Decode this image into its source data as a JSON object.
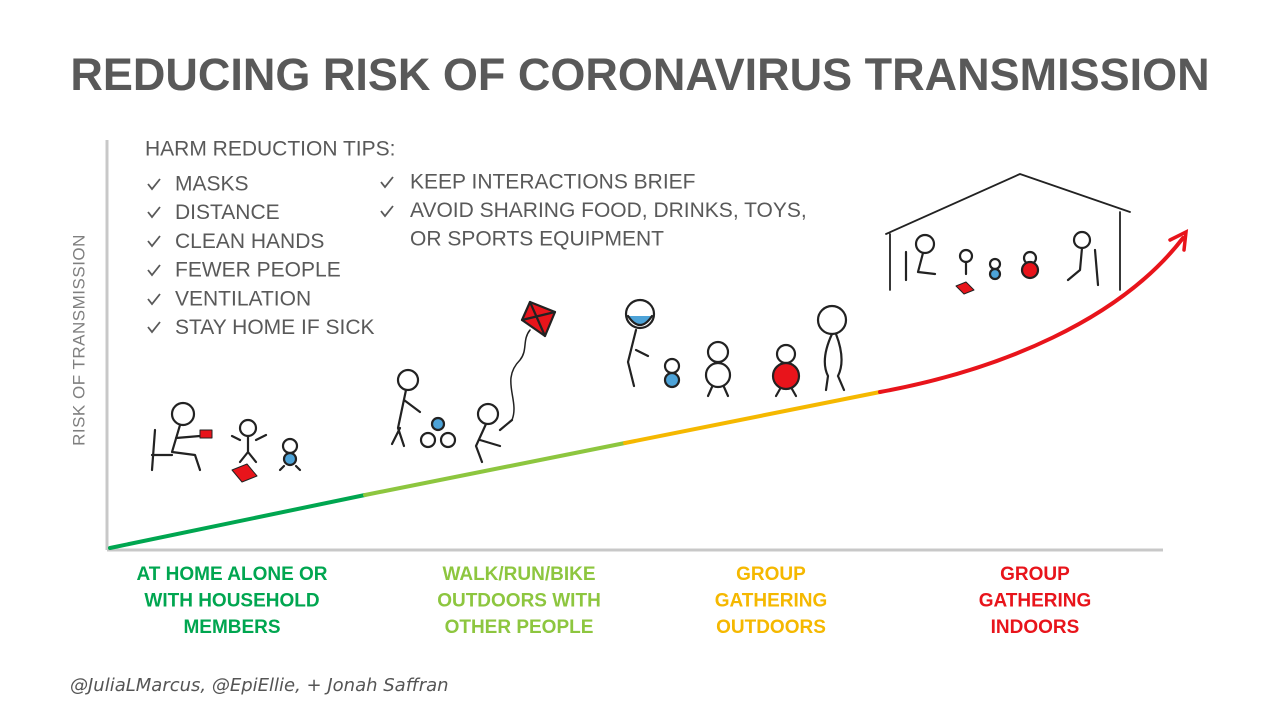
{
  "title": "REDUCING RISK OF CORONAVIRUS TRANSMISSION",
  "y_axis_label": "RISK OF TRANSMISSION",
  "tips": {
    "header": "HARM REDUCTION TIPS:",
    "left": [
      "MASKS",
      "DISTANCE",
      "CLEAN HANDS",
      "FEWER PEOPLE",
      "VENTILATION",
      "STAY HOME IF SICK"
    ],
    "right": [
      {
        "lines": [
          "KEEP INTERACTIONS BRIEF"
        ]
      },
      {
        "lines": [
          "AVOID SHARING FOOD, DRINKS, TOYS,",
          "OR SPORTS EQUIPMENT"
        ]
      }
    ]
  },
  "categories": [
    {
      "lines": [
        "AT HOME ALONE OR",
        "WITH HOUSEHOLD",
        "MEMBERS"
      ],
      "color": "#00a650"
    },
    {
      "lines": [
        "WALK/RUN/BIKE",
        "OUTDOORS WITH",
        "OTHER PEOPLE"
      ],
      "color": "#8dc63f"
    },
    {
      "lines": [
        "GROUP",
        "GATHERING",
        "OUTDOORS"
      ],
      "color": "#f5b800"
    },
    {
      "lines": [
        "GROUP",
        "GATHERING",
        "INDOORS"
      ],
      "color": "#e8141b"
    }
  ],
  "credit": "@JuliaLMarcus, @EpiEllie, + Jonah Saffran"
}
